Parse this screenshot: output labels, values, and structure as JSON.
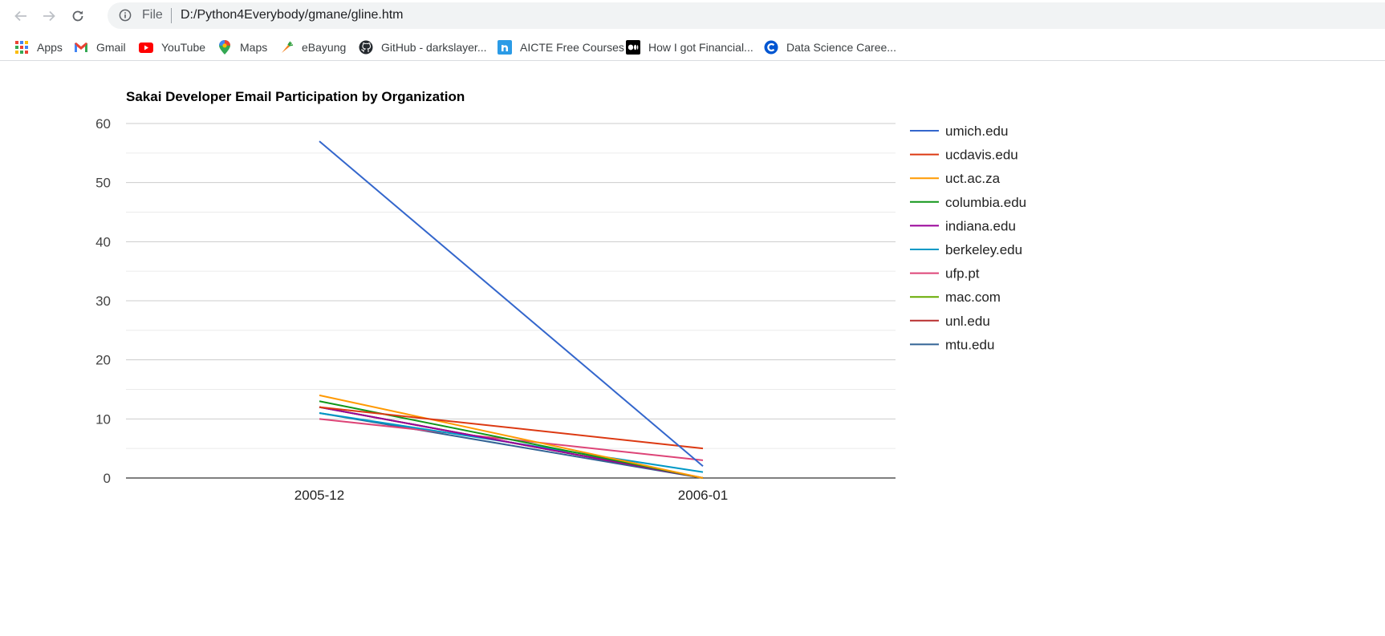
{
  "browser": {
    "url_scheme": "File",
    "url": "D:/Python4Everybody/gmane/gline.htm",
    "bookmarks": [
      {
        "label": "Apps",
        "icon": "apps-grid-icon"
      },
      {
        "label": "Gmail",
        "icon": "gmail-icon"
      },
      {
        "label": "YouTube",
        "icon": "youtube-icon"
      },
      {
        "label": "Maps",
        "icon": "maps-pin-icon"
      },
      {
        "label": "eBayung",
        "icon": "carrot-icon"
      },
      {
        "label": "GitHub - darkslayer...",
        "icon": "github-icon"
      },
      {
        "label": "AICTE Free Courses",
        "icon": "nptel-icon"
      },
      {
        "label": "How I got Financial...",
        "icon": "medium-icon"
      },
      {
        "label": "Data Science Caree...",
        "icon": "coursera-icon"
      }
    ]
  },
  "chart_data": {
    "type": "line",
    "title": "Sakai Developer Email Participation by Organization",
    "categories": [
      "2005-12",
      "2006-01"
    ],
    "ylim": [
      0,
      60
    ],
    "yticks": [
      0,
      10,
      20,
      30,
      40,
      50,
      60
    ],
    "grid": true,
    "legend_position": "right",
    "series": [
      {
        "name": "umich.edu",
        "color": "#3366cc",
        "values": [
          57,
          2
        ]
      },
      {
        "name": "ucdavis.edu",
        "color": "#dc3912",
        "values": [
          12,
          5
        ]
      },
      {
        "name": "uct.ac.za",
        "color": "#ff9900",
        "values": [
          14,
          0
        ]
      },
      {
        "name": "columbia.edu",
        "color": "#109618",
        "values": [
          13,
          0
        ]
      },
      {
        "name": "indiana.edu",
        "color": "#990099",
        "values": [
          12,
          0
        ]
      },
      {
        "name": "berkeley.edu",
        "color": "#0099c6",
        "values": [
          11,
          1
        ]
      },
      {
        "name": "ufp.pt",
        "color": "#dd4477",
        "values": [
          10,
          3
        ]
      },
      {
        "name": "mac.com",
        "color": "#66aa00",
        "values": [
          12,
          0
        ]
      },
      {
        "name": "unl.edu",
        "color": "#b82e2e",
        "values": [
          12,
          0
        ]
      },
      {
        "name": "mtu.edu",
        "color": "#316395",
        "values": [
          11,
          0
        ]
      }
    ]
  }
}
